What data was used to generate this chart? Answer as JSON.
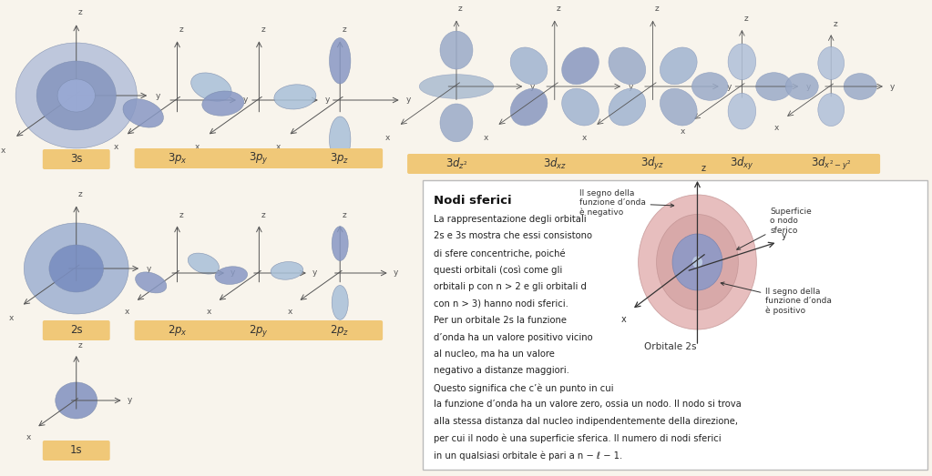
{
  "bg_color": "#f8f4ec",
  "orbital_color_dark_blue": "#8090b8",
  "orbital_color_mid_blue": "#9aaed0",
  "orbital_color_light_blue": "#b8cce4",
  "orbital_color_pink_outer": "#e8b0b0",
  "orbital_color_pink_inner": "#d47878",
  "orbital_color_blue_inner": "#8090b8",
  "label_bg": "#f5c98a",
  "label_bg2": "#f0c878",
  "text_color": "#333333",
  "box_bg": "#ffffff",
  "box_edge": "#aaaaaa",
  "nodi_title": "Nodi sferici",
  "line1": "La rappresentazione degli orbitali",
  "line2": "2s e 3s mostra che essi consistono",
  "line3": "di sfere concentriche, poiché",
  "line4": "questi orbitali (così come gli",
  "line5": "orbitali p con n > 2 e gli orbitali d",
  "line6": "con n > 3) hanno nodi sferici.",
  "line7": "Per un orbitale 2s la funzione",
  "line8": "d’onda ha un valore positivo vicino",
  "line9": "al nucleo, ma ha un valore",
  "line10": "negativo a distanze maggiori.",
  "line11": "Questo significa che c’è un punto in cui",
  "line12": "la funzione d’onda ha un valore zero, ossia un nodo. Il nodo si trova",
  "line13": "alla stessa distanza dal nucleo indipendentemente della direzione,",
  "line14": "per cui il nodo è una superficie sferica. Il numero di nodi sferici",
  "line15": "in un qualsiasi orbitale è pari a n − ℓ − 1.",
  "ann1": "Il segno della\nfunzione d’onda\nè negativo",
  "ann2": "Superficie\no nodo\nsferico",
  "ann3": "Il segno della\nfunzione d’onda\nè positivo",
  "ann4": "Orbitale 2s"
}
